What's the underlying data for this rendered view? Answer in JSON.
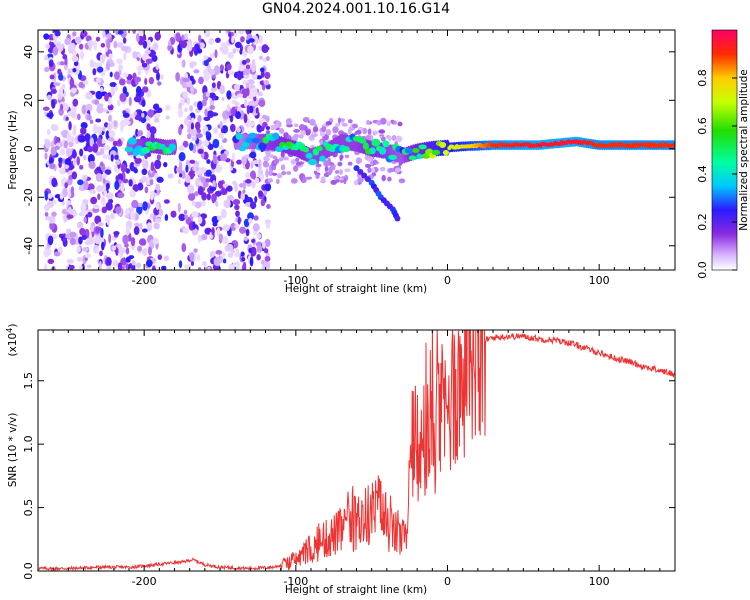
{
  "title": "GN04.2024.001.10.16.G14",
  "chart_data": [
    {
      "type": "heatmap",
      "xlabel": "Height of straight line (km)",
      "ylabel": "Frequency (Hz)",
      "xlim": [
        -270,
        150
      ],
      "ylim": [
        -50,
        49
      ],
      "xticks": [
        -200,
        -100,
        0,
        100
      ],
      "xtick_labels": [
        "-200",
        "-100",
        "0",
        "100"
      ],
      "yticks": [
        -40,
        -20,
        0,
        20,
        40
      ],
      "ytick_labels": [
        "-40",
        "-20",
        "0",
        "20",
        "40"
      ],
      "colorbar": {
        "label": "Normalized spectral amplitude",
        "range": [
          0,
          1
        ],
        "ticks": [
          0.0,
          0.2,
          0.4,
          0.6,
          0.8
        ],
        "tick_labels": [
          "0.0",
          "0.2",
          "0.4",
          "0.6",
          "0.8"
        ]
      },
      "features": {
        "noise_band_x": [
          -265,
          -118
        ],
        "noise_gap_x": [
          -190,
          -178
        ],
        "signal_trace": [
          {
            "x": -210,
            "f": 0.5,
            "amp": 0.35
          },
          {
            "x": -195,
            "f": 1.5,
            "amp": 0.45
          },
          {
            "x": -185,
            "f": 0.5,
            "amp": 0.4
          },
          {
            "x": -135,
            "f": 3.0,
            "amp": 0.3
          },
          {
            "x": -120,
            "f": 3.0,
            "amp": 0.4
          },
          {
            "x": -110,
            "f": 2.0,
            "amp": 0.45
          },
          {
            "x": -100,
            "f": 0.0,
            "amp": 0.45
          },
          {
            "x": -90,
            "f": -3.0,
            "amp": 0.4
          },
          {
            "x": -80,
            "f": -1.0,
            "amp": 0.4
          },
          {
            "x": -70,
            "f": 3.0,
            "amp": 0.4
          },
          {
            "x": -60,
            "f": 2.0,
            "amp": 0.4
          },
          {
            "x": -50,
            "f": 0.0,
            "amp": 0.45
          },
          {
            "x": -40,
            "f": -1.0,
            "amp": 0.4
          },
          {
            "x": -30,
            "f": -3.0,
            "amp": 0.35
          },
          {
            "x": -20,
            "f": -1.0,
            "amp": 0.5
          },
          {
            "x": -10,
            "f": 0.0,
            "amp": 0.6
          },
          {
            "x": 0,
            "f": 0.5,
            "amp": 0.7
          },
          {
            "x": 10,
            "f": 1.0,
            "amp": 0.75
          },
          {
            "x": 30,
            "f": 1.5,
            "amp": 0.9
          },
          {
            "x": 60,
            "f": 1.5,
            "amp": 0.95
          },
          {
            "x": 85,
            "f": 3.0,
            "amp": 0.95
          },
          {
            "x": 100,
            "f": 1.5,
            "amp": 0.9
          },
          {
            "x": 150,
            "f": 1.5,
            "amp": 0.9
          }
        ],
        "descending_branch": [
          {
            "x": -60,
            "f": -8
          },
          {
            "x": -50,
            "f": -14
          },
          {
            "x": -44,
            "f": -20
          },
          {
            "x": -36,
            "f": -25
          },
          {
            "x": -32,
            "f": -30
          }
        ]
      }
    },
    {
      "type": "line",
      "xlabel": "Height of straight line (km)",
      "ylabel": "SNR (10 * v/v)",
      "y_exponent_label": "(x10",
      "y_exponent": "4",
      "y_exponent_close": ")",
      "xlim": [
        -270,
        150
      ],
      "ylim": [
        0,
        1.9
      ],
      "xticks": [
        -200,
        -100,
        0,
        100
      ],
      "xtick_labels": [
        "-200",
        "-100",
        "0",
        "100"
      ],
      "yticks": [
        0.0,
        0.5,
        1.0,
        1.5
      ],
      "ytick_labels": [
        "0.0",
        "0.5",
        "1.0",
        "1.5"
      ],
      "color": "#ee3333",
      "series": [
        {
          "x": [
            -270,
            -250,
            -230,
            -210,
            -200,
            -185,
            -175,
            -168,
            -160,
            -150,
            -130,
            -115,
            -105,
            -95,
            -88,
            -80,
            -72,
            -65,
            -58,
            -50,
            -45,
            -40,
            -35,
            -30,
            -27,
            -24,
            -20,
            -15,
            -10,
            -5,
            0,
            5,
            10,
            15,
            20,
            25,
            30,
            40,
            50,
            60,
            70,
            80,
            90,
            100,
            110,
            120,
            130,
            140,
            150
          ],
          "y": [
            0.02,
            0.02,
            0.03,
            0.03,
            0.04,
            0.06,
            0.07,
            0.09,
            0.05,
            0.03,
            0.02,
            0.03,
            0.06,
            0.12,
            0.18,
            0.25,
            0.3,
            0.35,
            0.4,
            0.45,
            0.5,
            0.35,
            0.3,
            0.25,
            0.28,
            0.75,
            0.85,
            0.95,
            1.05,
            1.15,
            1.25,
            1.4,
            1.55,
            1.7,
            1.78,
            1.82,
            1.84,
            1.85,
            1.85,
            1.83,
            1.82,
            1.8,
            1.76,
            1.72,
            1.68,
            1.65,
            1.61,
            1.58,
            1.55
          ]
        }
      ]
    }
  ]
}
